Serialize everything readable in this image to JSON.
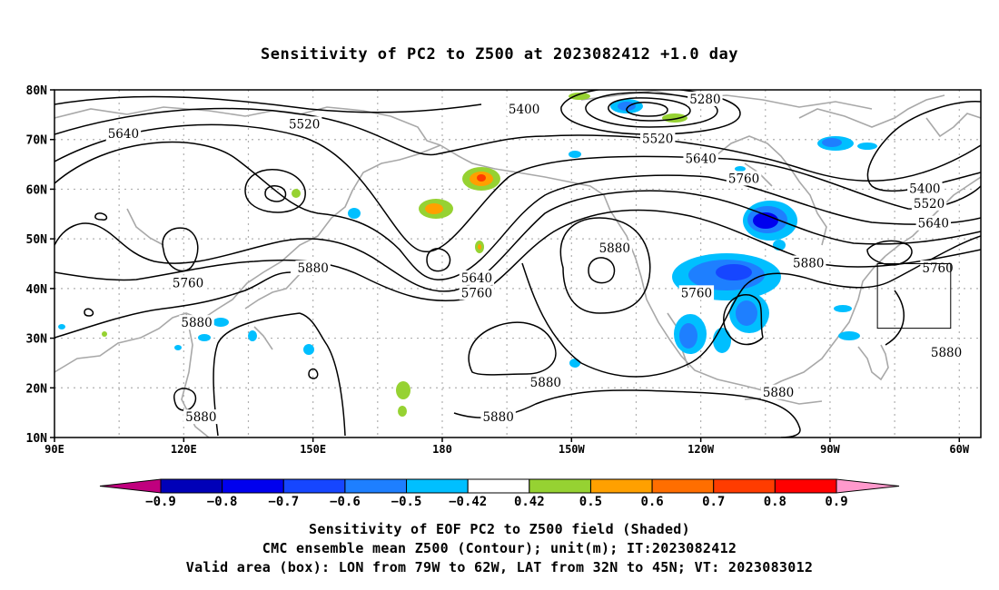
{
  "title": "Sensitivity of PC2 to Z500 at 2023082412 +1.0 day",
  "lat_labels": [
    "80N",
    "70N",
    "60N",
    "50N",
    "40N",
    "30N",
    "20N",
    "10N"
  ],
  "lon_labels": [
    "90E",
    "120E",
    "150E",
    "180",
    "150W",
    "120W",
    "90W",
    "60W"
  ],
  "contour_labels": [
    {
      "text": "5280",
      "lon": 241,
      "lat": 78
    },
    {
      "text": "5400",
      "lon": 199,
      "lat": 76
    },
    {
      "text": "5520",
      "lon": 148,
      "lat": 73
    },
    {
      "text": "5640",
      "lon": 106,
      "lat": 71
    },
    {
      "text": "5520",
      "lon": 230,
      "lat": 70
    },
    {
      "text": "5640",
      "lon": 240,
      "lat": 66
    },
    {
      "text": "5760",
      "lon": 250,
      "lat": 62
    },
    {
      "text": "5400",
      "lon": 292,
      "lat": 60
    },
    {
      "text": "5520",
      "lon": 293,
      "lat": 57
    },
    {
      "text": "5640",
      "lon": 294,
      "lat": 53
    },
    {
      "text": "5760",
      "lon": 295,
      "lat": 44
    },
    {
      "text": "5880",
      "lon": 265,
      "lat": 45
    },
    {
      "text": "5880",
      "lon": 150,
      "lat": 44
    },
    {
      "text": "5760",
      "lon": 121,
      "lat": 41
    },
    {
      "text": "5640",
      "lon": 188,
      "lat": 42
    },
    {
      "text": "5760",
      "lon": 188,
      "lat": 39
    },
    {
      "text": "5880",
      "lon": 220,
      "lat": 48
    },
    {
      "text": "5760",
      "lon": 239,
      "lat": 39
    },
    {
      "text": "5880",
      "lon": 123,
      "lat": 33
    },
    {
      "text": "5880",
      "lon": 297,
      "lat": 27
    },
    {
      "text": "5880",
      "lon": 204,
      "lat": 21
    },
    {
      "text": "5880",
      "lon": 258,
      "lat": 19
    },
    {
      "text": "5880",
      "lon": 124,
      "lat": 14
    },
    {
      "text": "5880",
      "lon": 193,
      "lat": 14
    }
  ],
  "validation_box": {
    "lon_min": -79,
    "lon_max": -62,
    "lat_min": 32,
    "lat_max": 45
  },
  "colorbar": {
    "labels": [
      "−0.9",
      "−0.8",
      "−0.7",
      "−0.6",
      "−0.5",
      "−0.42",
      "0.42",
      "0.5",
      "0.6",
      "0.7",
      "0.8",
      "0.9"
    ],
    "colors": [
      "#c0007e",
      "#0000b8",
      "#0000ee",
      "#1646ff",
      "#1e7fff",
      "#00bfff",
      "#ffffff",
      "#96d232",
      "#ffa000",
      "#ff6e00",
      "#ff3c00",
      "#ff0000",
      "#ff99cc"
    ]
  },
  "footer": {
    "line1": "Sensitivity of EOF PC2 to Z500 field (Shaded)",
    "line2": "CMC ensemble mean Z500 (Contour); unit(m); IT:2023082412",
    "line3": "Valid area (box): LON from 79W to 62W, LAT from 32N to 45N; VT: 2023083012"
  }
}
